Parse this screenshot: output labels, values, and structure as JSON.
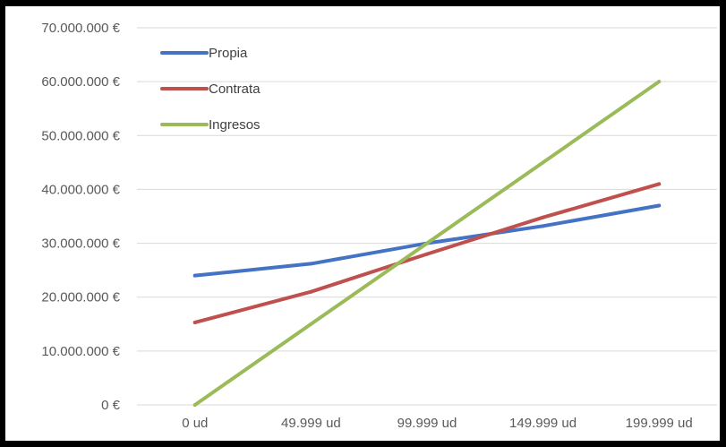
{
  "chart_data": {
    "type": "line",
    "categories": [
      "0 ud",
      "49.999 ud",
      "99.999 ud",
      "149.999 ud",
      "199.999 ud"
    ],
    "series": [
      {
        "name": "Propia",
        "color": "#4472C4",
        "values": [
          24000000,
          26200000,
          30000000,
          33200000,
          37000000
        ]
      },
      {
        "name": "Contrata",
        "color": "#C0504D",
        "values": [
          15300000,
          21000000,
          28000000,
          34800000,
          41000000
        ]
      },
      {
        "name": "Ingresos",
        "color": "#9BBB59",
        "values": [
          0,
          15000000,
          30000000,
          45000000,
          60000000
        ]
      }
    ],
    "y_ticks": [
      "0 €",
      "10.000.000 €",
      "20.000.000 €",
      "30.000.000 €",
      "40.000.000 €",
      "50.000.000 €",
      "60.000.000 €",
      "70.000.000 €"
    ],
    "ylim": [
      0,
      70000000
    ],
    "grid": true,
    "legend": "top-left",
    "title": "",
    "xlabel": "",
    "ylabel": ""
  }
}
